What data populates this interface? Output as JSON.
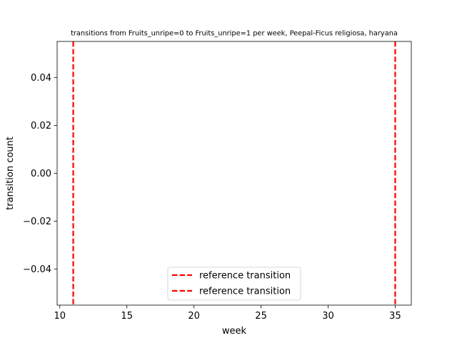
{
  "chart_data": {
    "type": "line",
    "title": "transitions from Fruits_unripe=0 to Fruits_unripe=1 per week, Peepal-Ficus religiosa, haryana",
    "xlabel": "week",
    "ylabel": "transition count",
    "xlim": [
      9.8,
      36.2
    ],
    "ylim": [
      -0.055,
      0.055
    ],
    "x_ticks": [
      10,
      15,
      20,
      25,
      30,
      35
    ],
    "x_tick_labels": [
      "10",
      "15",
      "20",
      "25",
      "30",
      "35"
    ],
    "y_ticks": [
      0.04,
      0.02,
      0.0,
      -0.02,
      -0.04
    ],
    "y_tick_labels": [
      "0.04",
      "0.02",
      "0.00",
      "−0.02",
      "−0.04"
    ],
    "grid": false,
    "legend_position": "lower center",
    "series": [],
    "reference_lines": [
      {
        "name": "reference transition",
        "x": 11,
        "color": "#ff0000",
        "style": "dashed"
      },
      {
        "name": "reference transition",
        "x": 35,
        "color": "#ff0000",
        "style": "dashed"
      }
    ]
  }
}
